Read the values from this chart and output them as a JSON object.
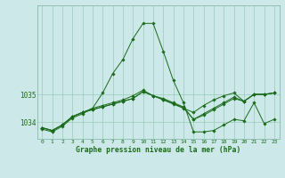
{
  "bg_color": "#cce8e8",
  "grid_color": "#99ccbb",
  "line_color": "#1a6b1a",
  "marker_color": "#1a6b1a",
  "title": "Graphe pression niveau de la mer (hPa)",
  "title_color": "#1a6b1a",
  "ylim": [
    1033.4,
    1038.2
  ],
  "yticks": [
    1034,
    1035
  ],
  "x_ticks": [
    0,
    1,
    2,
    3,
    4,
    5,
    6,
    7,
    8,
    9,
    10,
    11,
    12,
    13,
    14,
    15,
    16,
    17,
    18,
    19,
    20,
    21,
    22,
    23
  ],
  "series": [
    [
      1033.8,
      1033.7,
      1033.9,
      1034.2,
      1034.35,
      1034.45,
      1034.55,
      1034.65,
      1034.75,
      1034.85,
      1035.1,
      1034.95,
      1034.8,
      1034.65,
      1034.5,
      1034.35,
      1034.6,
      1034.8,
      1034.95,
      1035.05,
      1034.75,
      1035.0,
      1035.0,
      1035.05
    ],
    [
      1033.8,
      1033.7,
      1033.9,
      1034.2,
      1034.35,
      1034.45,
      1034.55,
      1034.65,
      1034.75,
      1034.85,
      1035.1,
      1034.95,
      1034.82,
      1034.67,
      1034.52,
      1034.1,
      1034.25,
      1034.45,
      1034.65,
      1034.85,
      1034.75,
      1035.0,
      1035.0,
      1035.05
    ],
    [
      1033.8,
      1033.7,
      1033.9,
      1034.2,
      1034.35,
      1034.5,
      1034.6,
      1034.7,
      1034.8,
      1034.95,
      1035.15,
      1034.95,
      1034.85,
      1034.7,
      1034.55,
      1034.1,
      1034.3,
      1034.5,
      1034.7,
      1034.9,
      1034.75,
      1035.0,
      1035.0,
      1035.05
    ],
    [
      1033.75,
      1033.65,
      1033.85,
      1034.15,
      1034.3,
      1034.5,
      1035.05,
      1035.75,
      1036.25,
      1037.0,
      1037.55,
      1037.55,
      1036.55,
      1035.5,
      1034.7,
      1033.65,
      1033.65,
      1033.7,
      1033.9,
      1034.1,
      1034.05,
      1034.7,
      1033.95,
      1034.1
    ]
  ],
  "figsize": [
    3.2,
    2.0
  ],
  "dpi": 100
}
